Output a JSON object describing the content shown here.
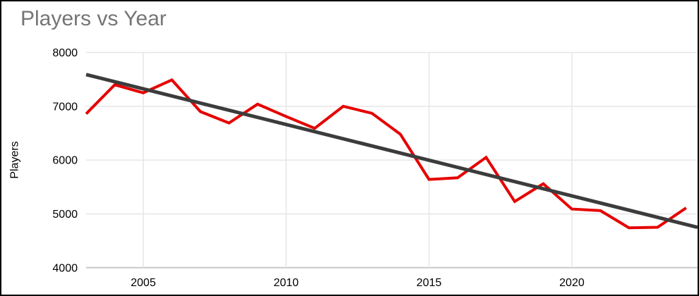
{
  "chart": {
    "title": "Players vs Year",
    "y_axis_title": "Players"
  },
  "chart_data": {
    "type": "line",
    "title": "Players vs Year",
    "xlabel": "",
    "ylabel": "Players",
    "x": [
      2003,
      2004,
      2005,
      2006,
      2007,
      2008,
      2009,
      2010,
      2011,
      2012,
      2013,
      2014,
      2015,
      2016,
      2017,
      2018,
      2019,
      2020,
      2021,
      2022,
      2023,
      2024
    ],
    "series": [
      {
        "name": "Players",
        "color": "#e60000",
        "values": [
          6860,
          7400,
          7250,
          7490,
          6900,
          6690,
          7040,
          6810,
          6590,
          7000,
          6870,
          6480,
          5640,
          5670,
          6050,
          5230,
          5560,
          5090,
          5060,
          4740,
          4750,
          5110
        ]
      }
    ],
    "trendline": {
      "color": "#3c3c3c",
      "x_start": 2003,
      "y_start": 7590,
      "x_end": 2024.4,
      "y_end": 4750
    },
    "x_ticks": [
      2005,
      2010,
      2015,
      2020
    ],
    "y_ticks": [
      4000,
      5000,
      6000,
      7000,
      8000
    ],
    "xlim": [
      2003,
      2024.4
    ],
    "ylim": [
      4000,
      8000
    ],
    "grid": true,
    "legend_position": "none",
    "colors": {
      "grid": "#e6e6e6",
      "axis": "#c7c7c7",
      "tick_text": "#000000",
      "title_text": "#757575",
      "background": "#ffffff",
      "border": "#000000"
    }
  }
}
